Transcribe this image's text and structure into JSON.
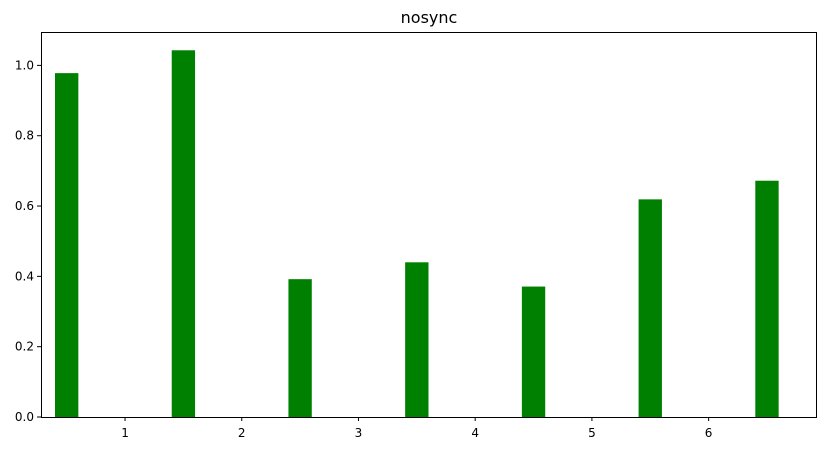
{
  "chart_data": {
    "type": "bar",
    "title": "nosync",
    "xlabel": "",
    "ylabel": "",
    "bar_color": "#008000",
    "x": [
      0.5,
      1.5,
      2.5,
      3.5,
      4.5,
      5.5,
      6.5
    ],
    "values": [
      0.978,
      1.043,
      0.392,
      0.44,
      0.371,
      0.619,
      0.672
    ],
    "bar_width": 0.2,
    "xlim": [
      0.28,
      6.92
    ],
    "ylim": [
      0,
      1.095
    ],
    "xticks": [
      1,
      2,
      3,
      4,
      5,
      6
    ],
    "xtick_labels": [
      "1",
      "2",
      "3",
      "4",
      "5",
      "6"
    ],
    "yticks": [
      0,
      0.2,
      0.4,
      0.6,
      0.8,
      1.0
    ],
    "ytick_labels": [
      "0.0",
      "0.2",
      "0.4",
      "0.6",
      "0.8",
      "1.0"
    ],
    "grid": false,
    "legend": "none"
  }
}
